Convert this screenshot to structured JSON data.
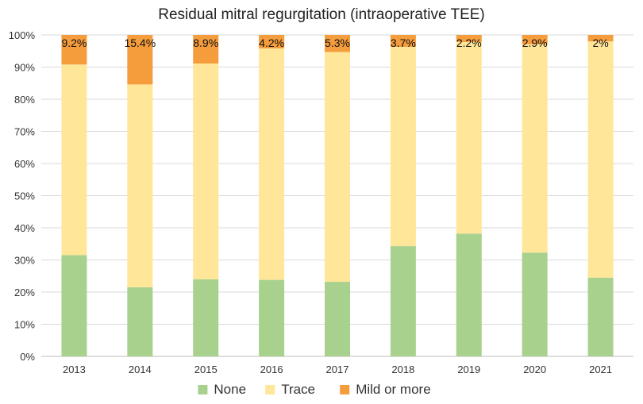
{
  "chart_data": {
    "type": "bar",
    "stacked": true,
    "percent_stacked": true,
    "title": "Residual mitral regurgitation (intraoperative TEE)",
    "xlabel": "",
    "ylabel": "",
    "ylim": [
      0,
      100
    ],
    "y_ticks": [
      "0%",
      "10%",
      "20%",
      "30%",
      "40%",
      "50%",
      "60%",
      "70%",
      "80%",
      "90%",
      "100%"
    ],
    "categories": [
      "2013",
      "2014",
      "2015",
      "2016",
      "2017",
      "2018",
      "2019",
      "2020",
      "2021"
    ],
    "series": [
      {
        "name": "None",
        "color": "#a9d18e",
        "values": [
          31.5,
          21.5,
          24.0,
          23.8,
          23.2,
          34.3,
          38.2,
          32.3,
          24.5
        ]
      },
      {
        "name": "Trace",
        "color": "#ffe699",
        "values": [
          59.3,
          63.1,
          67.1,
          72.0,
          71.5,
          62.0,
          59.6,
          64.8,
          73.5
        ]
      },
      {
        "name": "Mild or more",
        "color": "#f59c3c",
        "values": [
          9.2,
          15.4,
          8.9,
          4.2,
          5.3,
          3.7,
          2.2,
          2.9,
          2.0
        ]
      }
    ],
    "data_labels": [
      "9.2%",
      "15.4%",
      "8.9%",
      "4.2%",
      "5.3%",
      "3.7%",
      "2.2%",
      "2.9%",
      "2%"
    ],
    "grid": true,
    "legend_position": "bottom"
  }
}
